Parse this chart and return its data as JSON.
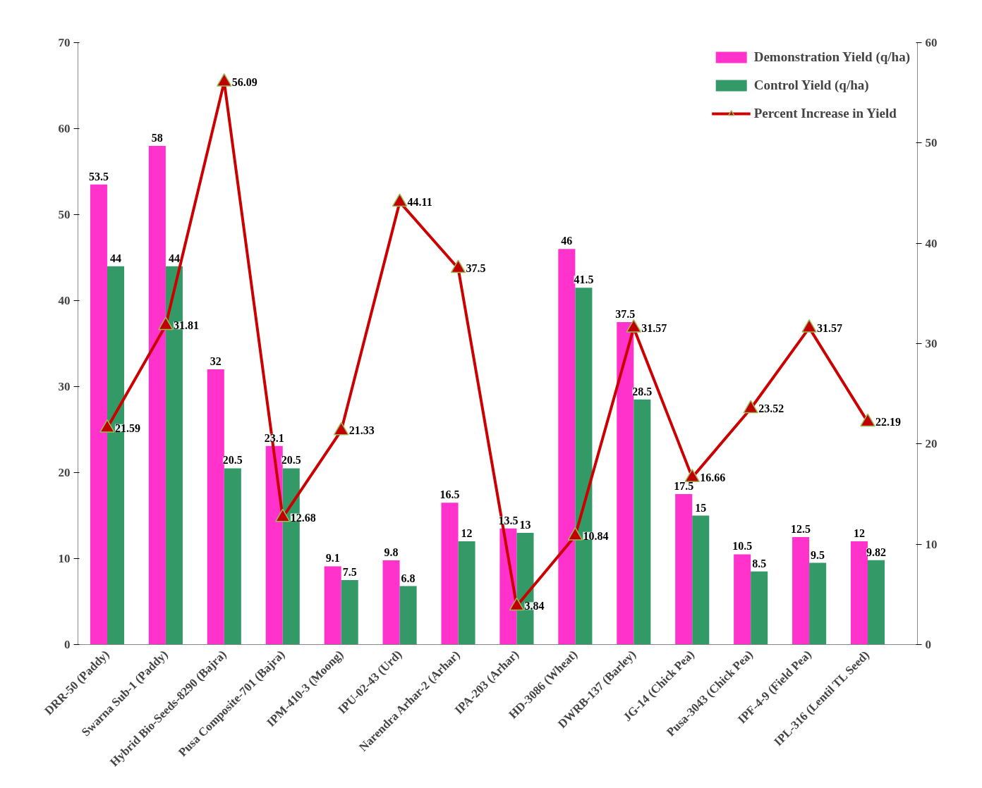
{
  "chart_data": {
    "type": "bar",
    "categories": [
      "DRR-50 (Paddy)",
      "Swarna Sub-1 (Paddy)",
      "Hybrid Bio-Seeds-8290 (Bajra)",
      "Pusa Composite-701 (Bajra)",
      "IPM-410-3 (Moong)",
      "IPU-02-43 (Urd)",
      "Narendra Arhar-2 (Arhar)",
      "IPA-203 (Arhar)",
      "HD-3086 (Wheat)",
      "DWRB-137 (Barley)",
      "JG-14 (Chick Pea)",
      "Pusa-3043 (Chick Pea)",
      "IPF-4-9 (Field Pea)",
      "IPL-316 (Lentil TL Seed)"
    ],
    "series": [
      {
        "name": "Demonstration Yield (q/ha)",
        "color": "#ff33cc",
        "values": [
          53.5,
          58,
          32,
          23.1,
          9.1,
          9.8,
          16.5,
          13.5,
          46,
          37.5,
          17.5,
          10.5,
          12.5,
          12
        ]
      },
      {
        "name": "Control Yield (q/ha)",
        "color": "#339966",
        "values": [
          44,
          44,
          20.5,
          20.5,
          7.5,
          6.8,
          12,
          13,
          41.5,
          28.5,
          15,
          8.5,
          9.5,
          9.82
        ]
      },
      {
        "name": "Percent Increase in Yield",
        "type": "line",
        "axis": "y2",
        "color": "#cc0000",
        "marker": "triangle",
        "values": [
          21.59,
          31.81,
          56.09,
          12.68,
          21.33,
          44.11,
          37.5,
          3.84,
          10.84,
          31.57,
          16.66,
          23.52,
          31.57,
          22.19
        ]
      }
    ],
    "ylim": [
      0,
      70
    ],
    "yticks": [
      0,
      10,
      20,
      30,
      40,
      50,
      60,
      70
    ],
    "y2lim": [
      0,
      60
    ],
    "y2ticks": [
      0,
      10,
      20,
      30,
      40,
      50,
      60
    ],
    "data_labels": true,
    "grid": false,
    "legend": "top right"
  }
}
